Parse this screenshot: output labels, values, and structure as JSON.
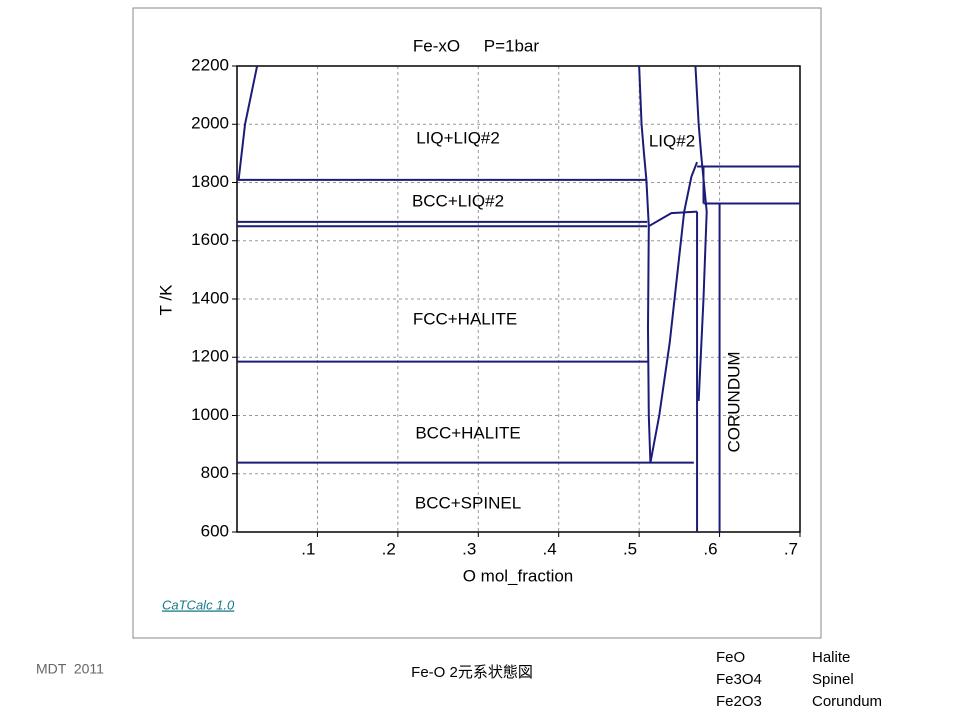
{
  "chart_data": {
    "type": "phase_diagram",
    "title": "Fe-xO     P=1bar",
    "xlabel": "O mol_fraction",
    "ylabel": "T /K",
    "xlim": [
      0,
      0.7
    ],
    "ylim": [
      600,
      2200
    ],
    "xticks": [
      {
        "value": 0.1,
        "label": ".1"
      },
      {
        "value": 0.2,
        "label": ".2"
      },
      {
        "value": 0.3,
        "label": ".3"
      },
      {
        "value": 0.4,
        "label": ".4"
      },
      {
        "value": 0.5,
        "label": ".5"
      },
      {
        "value": 0.6,
        "label": ".6"
      },
      {
        "value": 0.7,
        "label": ".7"
      }
    ],
    "yticks": [
      600,
      800,
      1000,
      1200,
      1400,
      1600,
      1800,
      2000,
      2200
    ],
    "grid": true,
    "color": "#1c1c78",
    "lines": [
      {
        "x": [
          0.002,
          0.01,
          0.025
        ],
        "y": [
          1809,
          2000,
          2200
        ]
      },
      {
        "x": [
          0,
          0.508
        ],
        "y": [
          1809,
          1809
        ]
      },
      {
        "x": [
          0,
          0.51
        ],
        "y": [
          1665,
          1665
        ]
      },
      {
        "x": [
          0,
          0.51
        ],
        "y": [
          1650,
          1650
        ]
      },
      {
        "x": [
          0,
          0.511
        ],
        "y": [
          1185,
          1185
        ]
      },
      {
        "x": [
          0,
          0.568
        ],
        "y": [
          838,
          838
        ]
      },
      {
        "x": [
          0.5,
          0.503,
          0.506,
          0.509,
          0.512
        ],
        "y": [
          2200,
          2000,
          1900,
          1809,
          1650
        ]
      },
      {
        "x": [
          0.57,
          0.574,
          0.577,
          0.578
        ],
        "y": [
          2200,
          2000,
          1900,
          1870
        ]
      },
      {
        "x": [
          0.512,
          0.511,
          0.512,
          0.514
        ],
        "y": [
          1650,
          1300,
          1000,
          838
        ]
      },
      {
        "x": [
          0.514,
          0.525,
          0.538,
          0.548,
          0.556,
          0.565,
          0.572
        ],
        "y": [
          838,
          1000,
          1250,
          1500,
          1700,
          1820,
          1870
        ]
      },
      {
        "x": [
          0.512,
          0.54,
          0.572
        ],
        "y": [
          1650,
          1695,
          1700
        ]
      },
      {
        "x": [
          0.572,
          0.572
        ],
        "y": [
          600,
          1700
        ]
      },
      {
        "x": [
          0.578,
          0.584,
          0.58,
          0.574
        ],
        "y": [
          1870,
          1700,
          1400,
          1050
        ]
      },
      {
        "x": [
          0.6,
          0.6
        ],
        "y": [
          600,
          1728
        ]
      },
      {
        "x": [
          0.58,
          0.7
        ],
        "y": [
          1728,
          1728
        ]
      },
      {
        "x": [
          0.572,
          0.7
        ],
        "y": [
          1855,
          1855
        ]
      },
      {
        "x": [
          0.58,
          0.58
        ],
        "y": [
          1728,
          1855
        ]
      }
    ],
    "region_labels": [
      "LIQ+LIQ#2",
      "BCC+LIQ#2",
      "FCC+HALITE",
      "BCC+HALITE",
      "BCC+SPINEL",
      "LIQ#2",
      "CORUNDUM"
    ]
  },
  "software": "CaTCalc 1.0",
  "footer": {
    "author": "MDT  2011",
    "caption": "Fe-O 2元系状態図",
    "phases": [
      [
        "FeO",
        "Halite"
      ],
      [
        "Fe3O4",
        "Spinel"
      ],
      [
        "Fe2O3",
        "Corundum"
      ]
    ]
  }
}
